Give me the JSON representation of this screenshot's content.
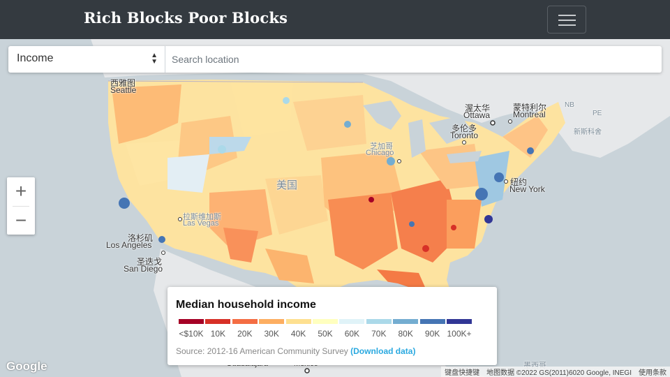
{
  "navbar": {
    "brand": "Rich Blocks Poor Blocks"
  },
  "controls": {
    "select_value": "Income",
    "search_placeholder": "Search location"
  },
  "zoom": {
    "in_label": "+",
    "out_label": "−"
  },
  "map_labels": {
    "country": "美国",
    "seattle_cn": "西雅图",
    "seattle_en": "Seattle",
    "ottawa_cn": "渥太华",
    "ottawa_en": "Ottawa",
    "montreal_cn": "蒙特利尔",
    "montreal_en": "Montreal",
    "toronto_cn": "多伦多",
    "toronto_en": "Toronto",
    "chicago_cn": "芝加哥",
    "chicago_en": "Chicago",
    "newyork_cn": "纽约",
    "newyork_en": "New York",
    "lasvegas_cn": "拉斯维加斯",
    "lasvegas_en": "Las Vegas",
    "losangeles_cn": "洛杉矶",
    "losangeles_en": "Los Angeles",
    "sandiego_cn": "圣迭戈",
    "sandiego_en": "San Diego",
    "nb": "NB",
    "pe": "PE",
    "newbrunswick_cn": "新斯科舍",
    "mexico_cn": "墨西哥",
    "guadalajara": "Guadalajara",
    "mexico_city": "México"
  },
  "legend": {
    "title": "Median household income",
    "bins": [
      {
        "label": "<$10K",
        "color": "#a50026"
      },
      {
        "label": "10K",
        "color": "#d73027"
      },
      {
        "label": "20K",
        "color": "#f46d43"
      },
      {
        "label": "30K",
        "color": "#fdae61"
      },
      {
        "label": "40K",
        "color": "#fee090"
      },
      {
        "label": "50K",
        "color": "#ffffbf"
      },
      {
        "label": "60K",
        "color": "#e0f3f8"
      },
      {
        "label": "70K",
        "color": "#abd9e9"
      },
      {
        "label": "80K",
        "color": "#74add1"
      },
      {
        "label": "90K",
        "color": "#4575b4"
      },
      {
        "label": "100K+",
        "color": "#313695"
      }
    ],
    "source_prefix": "Source: 2012-16 American Community Survey",
    "download_label": "(Download data)"
  },
  "google_logo": "Google",
  "attribution": {
    "shortcuts": "键盘快捷键",
    "mapdata": "地图数据 ©2022 GS(2011)6020 Google, INEGI",
    "terms": "使用条款"
  }
}
